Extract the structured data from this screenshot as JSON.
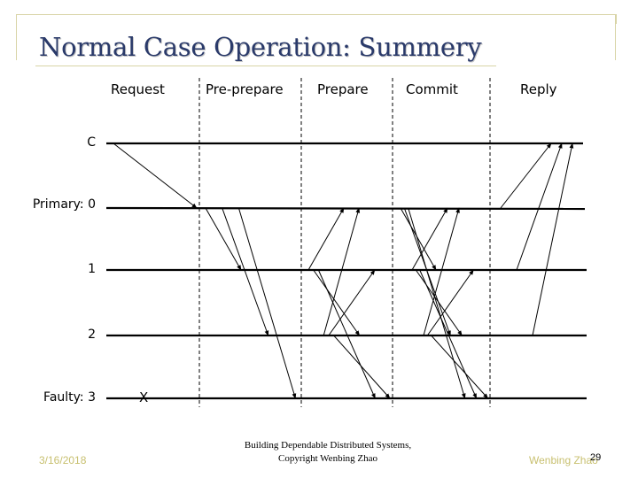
{
  "title": "Normal Case Operation: Summery",
  "phases": [
    "Request",
    "Pre-prepare",
    "Prepare",
    "Commit",
    "Reply"
  ],
  "nodes": {
    "client": "C",
    "primary": "Primary: 0",
    "replica1": "1",
    "replica2": "2",
    "faulty": "Faulty: 3"
  },
  "faulty_marker": "X",
  "footer": {
    "date": "3/16/2018",
    "course_line1": "Building Dependable Distributed Systems,",
    "course_line2": "Copyright Wenbing Zhao",
    "author": "Wenbing Zhao",
    "page": "29"
  },
  "colors": {
    "title": "#2a3a6a",
    "footer_accent": "#c8c070",
    "frame": "#d8d4a6"
  },
  "messages": [
    {
      "phase": "Request",
      "from": "client",
      "to": "primary"
    },
    {
      "phase": "Pre-prepare",
      "from": "primary",
      "to": "replica1"
    },
    {
      "phase": "Pre-prepare",
      "from": "primary",
      "to": "replica2"
    },
    {
      "phase": "Pre-prepare",
      "from": "primary",
      "to": "faulty"
    },
    {
      "phase": "Prepare",
      "from": "replica1",
      "to": "primary"
    },
    {
      "phase": "Prepare",
      "from": "replica1",
      "to": "replica2"
    },
    {
      "phase": "Prepare",
      "from": "replica1",
      "to": "faulty"
    },
    {
      "phase": "Prepare",
      "from": "replica2",
      "to": "primary"
    },
    {
      "phase": "Prepare",
      "from": "replica2",
      "to": "replica1"
    },
    {
      "phase": "Prepare",
      "from": "replica2",
      "to": "faulty"
    },
    {
      "phase": "Commit",
      "from": "primary",
      "to": "replica1"
    },
    {
      "phase": "Commit",
      "from": "primary",
      "to": "replica2"
    },
    {
      "phase": "Commit",
      "from": "primary",
      "to": "faulty"
    },
    {
      "phase": "Commit",
      "from": "replica1",
      "to": "primary"
    },
    {
      "phase": "Commit",
      "from": "replica1",
      "to": "replica2"
    },
    {
      "phase": "Commit",
      "from": "replica1",
      "to": "faulty"
    },
    {
      "phase": "Commit",
      "from": "replica2",
      "to": "primary"
    },
    {
      "phase": "Commit",
      "from": "replica2",
      "to": "replica1"
    },
    {
      "phase": "Commit",
      "from": "replica2",
      "to": "faulty"
    },
    {
      "phase": "Reply",
      "from": "primary",
      "to": "client"
    },
    {
      "phase": "Reply",
      "from": "replica1",
      "to": "client"
    },
    {
      "phase": "Reply",
      "from": "replica2",
      "to": "client"
    }
  ]
}
